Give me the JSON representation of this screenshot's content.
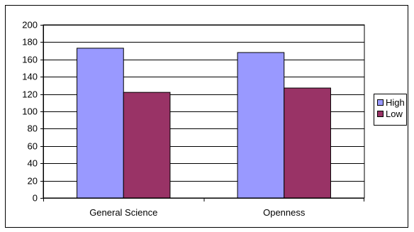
{
  "chart_data": {
    "type": "bar",
    "title": "",
    "xlabel": "",
    "ylabel": "",
    "categories": [
      "General Science",
      "Openness"
    ],
    "series": [
      {
        "name": "High",
        "values": [
          173,
          168
        ],
        "color": "#9999ff"
      },
      {
        "name": "Low",
        "values": [
          122,
          127
        ],
        "color": "#993366"
      }
    ],
    "ylim": [
      0,
      200
    ],
    "yticks": [
      "0",
      "20",
      "40",
      "60",
      "80",
      "100",
      "120",
      "140",
      "160",
      "180",
      "200"
    ],
    "grid": true,
    "legend_position": "right",
    "plot_background": "#ffffff",
    "gridline_color": "#000000",
    "bar_edge_color": "#000000"
  }
}
